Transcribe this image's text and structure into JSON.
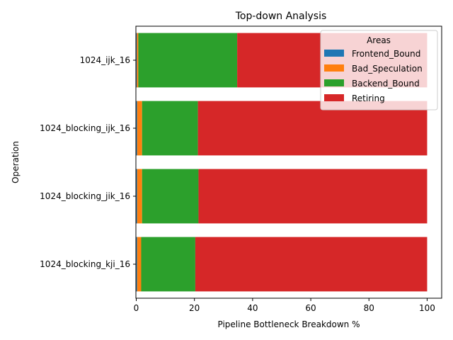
{
  "chart_data": {
    "type": "bar",
    "orientation": "horizontal",
    "stacked": true,
    "title": "Top-down Analysis",
    "xlabel": "Pipeline Bottleneck Breakdown %",
    "ylabel": "Operation",
    "xlim": [
      0,
      105
    ],
    "xticks": [
      "0",
      "20",
      "40",
      "60",
      "80",
      "100"
    ],
    "grid": false,
    "categories": [
      "1024_ijk_16",
      "1024_blocking_ijk_16",
      "1024_blocking_jik_16",
      "1024_blocking_kji_16"
    ],
    "series": [
      {
        "name": "Frontend_Bound",
        "color": "#1f77b4",
        "values": [
          0.2,
          0.3,
          0.3,
          0.3
        ]
      },
      {
        "name": "Bad_Speculation",
        "color": "#ff7f0e",
        "values": [
          0.5,
          1.7,
          1.7,
          1.4
        ]
      },
      {
        "name": "Backend_Bound",
        "color": "#2ca02c",
        "values": [
          34.0,
          19.2,
          19.4,
          18.6
        ]
      },
      {
        "name": "Retiring",
        "color": "#d62728",
        "values": [
          65.3,
          78.8,
          78.6,
          79.7
        ]
      }
    ],
    "legend": {
      "title": "Areas",
      "position": "top-right"
    }
  }
}
